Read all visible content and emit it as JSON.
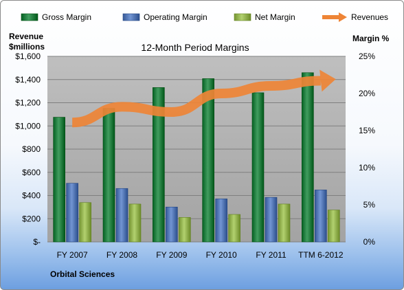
{
  "chart_data": {
    "type": "bar",
    "title": "12-Month Period Margins",
    "company": "Orbital Sciences",
    "categories": [
      "FY 2007",
      "FY 2008",
      "FY 2009",
      "FY 2010",
      "FY 2011",
      "TTM 6-2012"
    ],
    "left_axis": {
      "label_line1": "Revenue",
      "label_line2": "$millions",
      "ylim": [
        0,
        1600
      ],
      "ticks": [
        "$-",
        "$200",
        "$400",
        "$600",
        "$800",
        "$1,000",
        "$1,200",
        "$1,400",
        "$1,600"
      ]
    },
    "right_axis": {
      "label": "Margin %",
      "ylim": [
        0,
        25
      ],
      "ticks": [
        "0%",
        "5%",
        "10%",
        "15%",
        "20%",
        "25%"
      ]
    },
    "series": [
      {
        "name": "Gross Margin",
        "type": "bar",
        "axis": "right",
        "color": "#1e7a3c",
        "values": [
          16.8,
          18.0,
          20.8,
          22.0,
          20.1,
          22.8
        ]
      },
      {
        "name": "Operating Margin",
        "type": "bar",
        "axis": "right",
        "color": "#4f72b0",
        "values": [
          7.9,
          7.2,
          4.7,
          5.8,
          6.0,
          7.0
        ]
      },
      {
        "name": "Net Margin",
        "type": "bar",
        "axis": "right",
        "color": "#8fae4c",
        "values": [
          5.3,
          5.1,
          3.3,
          3.7,
          5.1,
          4.3
        ]
      },
      {
        "name": "Revenues",
        "type": "line",
        "axis": "left",
        "color": "#ee8436",
        "values": [
          1030,
          1165,
          1120,
          1280,
          1345,
          1390
        ]
      }
    ],
    "grid": true,
    "legend_position": "top"
  }
}
